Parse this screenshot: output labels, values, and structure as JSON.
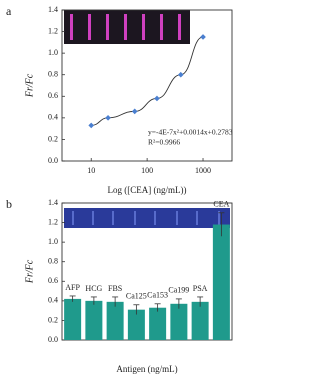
{
  "chart_data": [
    {
      "type": "scatter",
      "panel": "a",
      "xlabel": "Log ([CEA] (ng/mL))",
      "ylabel": "Fr/Fc",
      "annotations": [
        "y=-4E-7x²+0.0014x+0.2783",
        "R²=0.9966"
      ],
      "x": [
        10,
        20,
        60,
        150,
        400,
        1000
      ],
      "values": [
        0.33,
        0.4,
        0.46,
        0.58,
        0.8,
        1.15
      ],
      "color": "#4a7fd0",
      "xscale": "log",
      "xlim": [
        3,
        3300
      ],
      "xticks": [
        10,
        100,
        1000
      ],
      "ylim": [
        0,
        1.4
      ],
      "yticks": [
        {
          "value": 0,
          "label": "0.0"
        },
        {
          "value": 0.2,
          "label": "0.2"
        },
        {
          "value": 0.4,
          "label": "0.4"
        },
        {
          "value": 0.6,
          "label": "0.6"
        },
        {
          "value": 0.8,
          "label": "0.8"
        },
        {
          "value": 1,
          "label": "1.0"
        },
        {
          "value": 1.2,
          "label": "1.2"
        },
        {
          "value": 1.4,
          "label": "1.4"
        }
      ]
    },
    {
      "type": "bar",
      "panel": "b",
      "xlabel": "Antigen (ng/mL)",
      "ylabel": "Fr/Fc",
      "categories": [
        "AFP",
        "HCG",
        "FBS",
        "Ca125",
        "Ca153",
        "Ca199",
        "PSA",
        "CEA"
      ],
      "values": [
        0.42,
        0.4,
        0.39,
        0.31,
        0.33,
        0.37,
        0.39,
        1.18
      ],
      "errors": [
        0.03,
        0.04,
        0.05,
        0.05,
        0.04,
        0.05,
        0.05,
        0.12
      ],
      "color": "#1f9a8c",
      "ylim": [
        0,
        1.4
      ],
      "yticks": [
        {
          "value": 0,
          "label": "0.0"
        },
        {
          "value": 0.2,
          "label": "0.2"
        },
        {
          "value": 0.4,
          "label": "0.4"
        },
        {
          "value": 0.6,
          "label": "0.6"
        },
        {
          "value": 0.8,
          "label": "0.8"
        },
        {
          "value": 1,
          "label": "1.0"
        },
        {
          "value": 1.2,
          "label": "1.2"
        },
        {
          "value": 1.4,
          "label": "1.4"
        }
      ]
    }
  ]
}
